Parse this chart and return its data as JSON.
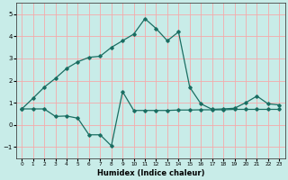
{
  "xlabel": "Humidex (Indice chaleur)",
  "bg_color": "#c8ece8",
  "grid_color": "#f5aaaa",
  "line_color": "#1a6e62",
  "xlim": [
    -0.5,
    23.5
  ],
  "ylim": [
    -1.5,
    5.5
  ],
  "yticks": [
    -1,
    0,
    1,
    2,
    3,
    4,
    5
  ],
  "xticks": [
    0,
    1,
    2,
    3,
    4,
    5,
    6,
    7,
    8,
    9,
    10,
    11,
    12,
    13,
    14,
    15,
    16,
    17,
    18,
    19,
    20,
    21,
    22,
    23
  ],
  "line1_x": [
    0,
    1,
    2,
    3,
    4,
    5,
    6,
    7,
    8,
    9,
    10,
    11,
    12,
    13,
    14,
    15,
    16,
    17,
    18,
    19,
    20,
    21,
    22,
    23
  ],
  "line1_y": [
    0.72,
    1.2,
    1.7,
    2.1,
    2.55,
    2.85,
    3.05,
    3.1,
    3.5,
    3.8,
    4.1,
    4.8,
    4.35,
    3.8,
    4.2,
    1.7,
    0.95,
    0.7,
    0.72,
    0.75,
    1.0,
    1.3,
    0.95,
    0.9
  ],
  "line2_x": [
    0,
    1,
    2,
    3,
    4,
    5,
    6,
    7,
    8,
    9,
    10,
    11,
    12,
    13,
    14,
    15,
    16,
    17,
    18,
    19,
    20,
    21,
    22,
    23
  ],
  "line2_y": [
    0.72,
    0.72,
    0.72,
    0.38,
    0.4,
    0.3,
    -0.45,
    -0.45,
    -0.95,
    1.5,
    0.65,
    0.65,
    0.65,
    0.65,
    0.67,
    0.67,
    0.68,
    0.68,
    0.68,
    0.7,
    0.7,
    0.7,
    0.7,
    0.7
  ]
}
